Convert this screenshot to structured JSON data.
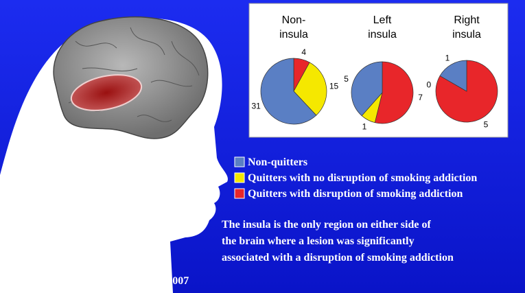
{
  "chart_data": [
    {
      "type": "pie",
      "title": [
        "Non-",
        "insula"
      ],
      "values": [
        31,
        15,
        4
      ]
    },
    {
      "type": "pie",
      "title": [
        "Left",
        "insula"
      ],
      "values": [
        5,
        1,
        7
      ]
    },
    {
      "type": "pie",
      "title": [
        "Right",
        "insula"
      ],
      "values": [
        1,
        0,
        5
      ]
    }
  ],
  "legend": {
    "items": [
      {
        "name": "Non-quitters",
        "color": "#5a7fc4"
      },
      {
        "name": "Quitters with no disruption of smoking addiction",
        "color": "#f5e800"
      },
      {
        "name": "Quitters with disruption of smoking addiction",
        "color": "#e8262a"
      }
    ]
  },
  "caption": [
    "The insula is the only region on either side of",
    "the brain where a lesion was significantly",
    "associated with a disruption of smoking addiction"
  ],
  "citation": "Naqvi,N. et al., Science 315:531, 2007"
}
